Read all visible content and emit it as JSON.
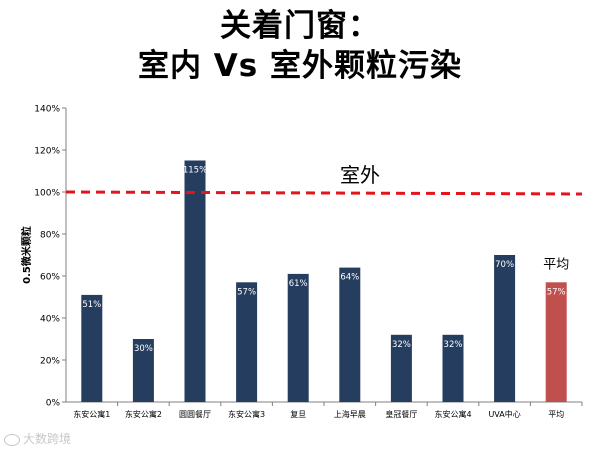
{
  "title": {
    "line1": "关着门窗：",
    "line2": "室内 Vs 室外颗粒污染"
  },
  "watermark": "大数跨境",
  "colors": {
    "bar": "#253d5f",
    "bar_highlight": "#c0504d",
    "reference_line": "#e3141b",
    "axis": "#808080"
  },
  "chart_data": {
    "type": "bar",
    "categories": [
      "东安公寓1",
      "东安公寓2",
      "圆圆餐厅",
      "东安公寓3",
      "复旦",
      "上海早晨",
      "皇冠餐厅",
      "东安公寓4",
      "UVA中心",
      "平均"
    ],
    "values": [
      51,
      30,
      115,
      57,
      61,
      64,
      32,
      32,
      70,
      57
    ],
    "data_labels": [
      "51%",
      "30%",
      "115%",
      "57%",
      "61%",
      "64%",
      "32%",
      "32%",
      "70%",
      "57%"
    ],
    "highlight_index": 9,
    "highlight_annotation": "平均",
    "ylabel": "0.5微米颗粒",
    "ylim": [
      0,
      140
    ],
    "yticks": [
      0,
      20,
      40,
      60,
      80,
      100,
      120,
      140
    ],
    "ytick_labels": [
      "0%",
      "20%",
      "40%",
      "60%",
      "80%",
      "100%",
      "120%",
      "140%"
    ],
    "reference_line": {
      "value": 100,
      "label": "室外",
      "style": "dashed"
    },
    "grid": false,
    "legend": "none"
  }
}
